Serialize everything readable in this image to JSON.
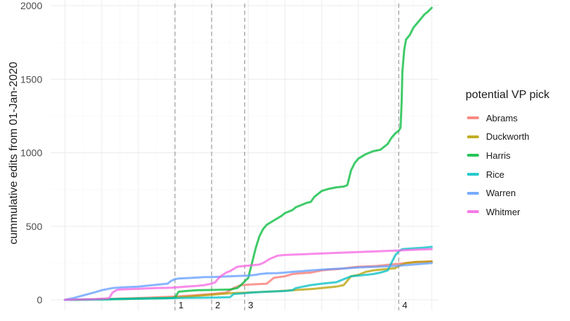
{
  "chart_data": {
    "type": "line",
    "ylabel": "cummulative edits from 01-Jan-2020",
    "xlabel": "",
    "ylim": [
      0,
      2000
    ],
    "yticks": [
      "0",
      "500",
      "1000",
      "1500",
      "2000"
    ],
    "xlim": [
      0,
      100
    ],
    "legend_title": "potential VP pick",
    "legend_position": "right",
    "grid": true,
    "events": [
      {
        "label": "1",
        "x": 30
      },
      {
        "label": "2",
        "x": 40
      },
      {
        "label": "3",
        "x": 49
      },
      {
        "label": "4",
        "x": 91
      }
    ],
    "series": [
      {
        "name": "Abrams",
        "color": "#F8766D",
        "points": [
          [
            0,
            0
          ],
          [
            10,
            5
          ],
          [
            20,
            12
          ],
          [
            30,
            22
          ],
          [
            35,
            30
          ],
          [
            40,
            40
          ],
          [
            44,
            50
          ],
          [
            46,
            80
          ],
          [
            48,
            100
          ],
          [
            51,
            105
          ],
          [
            55,
            110
          ],
          [
            57,
            150
          ],
          [
            60,
            160
          ],
          [
            62,
            175
          ],
          [
            64,
            180
          ],
          [
            67,
            185
          ],
          [
            70,
            200
          ],
          [
            72,
            205
          ],
          [
            75,
            210
          ],
          [
            78,
            220
          ],
          [
            80,
            225
          ],
          [
            85,
            230
          ],
          [
            88,
            238
          ],
          [
            91,
            245
          ],
          [
            95,
            255
          ],
          [
            100,
            262
          ]
        ]
      },
      {
        "name": "Duckworth",
        "color": "#B79F00",
        "points": [
          [
            0,
            0
          ],
          [
            15,
            5
          ],
          [
            30,
            15
          ],
          [
            35,
            25
          ],
          [
            40,
            35
          ],
          [
            45,
            45
          ],
          [
            50,
            50
          ],
          [
            55,
            55
          ],
          [
            60,
            62
          ],
          [
            62,
            65
          ],
          [
            65,
            70
          ],
          [
            68,
            75
          ],
          [
            70,
            80
          ],
          [
            72,
            85
          ],
          [
            74,
            90
          ],
          [
            75,
            95
          ],
          [
            76,
            100
          ],
          [
            77,
            130
          ],
          [
            78,
            160
          ],
          [
            80,
            170
          ],
          [
            82,
            190
          ],
          [
            84,
            200
          ],
          [
            86,
            205
          ],
          [
            88,
            210
          ],
          [
            90,
            215
          ],
          [
            91,
            230
          ],
          [
            93,
            250
          ],
          [
            96,
            258
          ],
          [
            100,
            260
          ]
        ]
      },
      {
        "name": "Harris",
        "color": "#00BA38",
        "points": [
          [
            0,
            0
          ],
          [
            10,
            3
          ],
          [
            20,
            8
          ],
          [
            29,
            12
          ],
          [
            30,
            15
          ],
          [
            31,
            55
          ],
          [
            33,
            60
          ],
          [
            36,
            65
          ],
          [
            40,
            67
          ],
          [
            45,
            70
          ],
          [
            47,
            80
          ],
          [
            48,
            100
          ],
          [
            50,
            150
          ],
          [
            51,
            250
          ],
          [
            52,
            350
          ],
          [
            53,
            430
          ],
          [
            54,
            480
          ],
          [
            55,
            510
          ],
          [
            57,
            540
          ],
          [
            59,
            570
          ],
          [
            60,
            590
          ],
          [
            62,
            610
          ],
          [
            63,
            630
          ],
          [
            65,
            650
          ],
          [
            66,
            660
          ],
          [
            67,
            665
          ],
          [
            68,
            700
          ],
          [
            69,
            720
          ],
          [
            70,
            740
          ],
          [
            72,
            755
          ],
          [
            74,
            765
          ],
          [
            76,
            770
          ],
          [
            77,
            780
          ],
          [
            78,
            880
          ],
          [
            79,
            930
          ],
          [
            80,
            960
          ],
          [
            82,
            990
          ],
          [
            84,
            1010
          ],
          [
            86,
            1020
          ],
          [
            87,
            1040
          ],
          [
            88,
            1060
          ],
          [
            89,
            1100
          ],
          [
            90,
            1130
          ],
          [
            91,
            1150
          ],
          [
            91.5,
            1170
          ],
          [
            91.8,
            1350
          ],
          [
            92,
            1550
          ],
          [
            92.5,
            1700
          ],
          [
            93,
            1770
          ],
          [
            94,
            1800
          ],
          [
            95,
            1850
          ],
          [
            96,
            1880
          ],
          [
            97,
            1910
          ],
          [
            98,
            1940
          ],
          [
            99,
            1960
          ],
          [
            100,
            1985
          ]
        ]
      },
      {
        "name": "Rice",
        "color": "#00BFC4",
        "points": [
          [
            0,
            0
          ],
          [
            10,
            3
          ],
          [
            20,
            8
          ],
          [
            30,
            12
          ],
          [
            40,
            15
          ],
          [
            45,
            18
          ],
          [
            46,
            40
          ],
          [
            49,
            45
          ],
          [
            51,
            50
          ],
          [
            55,
            55
          ],
          [
            60,
            60
          ],
          [
            62,
            65
          ],
          [
            63,
            80
          ],
          [
            65,
            90
          ],
          [
            67,
            100
          ],
          [
            70,
            110
          ],
          [
            74,
            120
          ],
          [
            76,
            140
          ],
          [
            78,
            160
          ],
          [
            80,
            165
          ],
          [
            82,
            170
          ],
          [
            84,
            175
          ],
          [
            86,
            185
          ],
          [
            88,
            200
          ],
          [
            89,
            250
          ],
          [
            90,
            300
          ],
          [
            91,
            330
          ],
          [
            92,
            345
          ],
          [
            95,
            350
          ],
          [
            98,
            355
          ],
          [
            100,
            360
          ]
        ]
      },
      {
        "name": "Warren",
        "color": "#619CFF",
        "points": [
          [
            0,
            0
          ],
          [
            2,
            10
          ],
          [
            5,
            30
          ],
          [
            8,
            50
          ],
          [
            10,
            65
          ],
          [
            13,
            80
          ],
          [
            16,
            85
          ],
          [
            20,
            90
          ],
          [
            24,
            100
          ],
          [
            28,
            110
          ],
          [
            29,
            130
          ],
          [
            30,
            140
          ],
          [
            31,
            145
          ],
          [
            35,
            150
          ],
          [
            38,
            155
          ],
          [
            40,
            155
          ],
          [
            45,
            160
          ],
          [
            50,
            165
          ],
          [
            52,
            170
          ],
          [
            53,
            175
          ],
          [
            55,
            180
          ],
          [
            58,
            182
          ],
          [
            60,
            185
          ],
          [
            62,
            190
          ],
          [
            65,
            195
          ],
          [
            67,
            200
          ],
          [
            70,
            205
          ],
          [
            73,
            210
          ],
          [
            77,
            215
          ],
          [
            80,
            220
          ],
          [
            85,
            225
          ],
          [
            90,
            230
          ],
          [
            95,
            240
          ],
          [
            100,
            250
          ]
        ]
      },
      {
        "name": "Whitmer",
        "color": "#F564E3",
        "points": [
          [
            0,
            0
          ],
          [
            8,
            5
          ],
          [
            12,
            10
          ],
          [
            13,
            50
          ],
          [
            14,
            65
          ],
          [
            15,
            70
          ],
          [
            20,
            75
          ],
          [
            25,
            80
          ],
          [
            29,
            82
          ],
          [
            33,
            90
          ],
          [
            36,
            95
          ],
          [
            38,
            100
          ],
          [
            40,
            110
          ],
          [
            41,
            120
          ],
          [
            42,
            150
          ],
          [
            43,
            170
          ],
          [
            44,
            185
          ],
          [
            45,
            195
          ],
          [
            46,
            210
          ],
          [
            47,
            225
          ],
          [
            49,
            230
          ],
          [
            51,
            235
          ],
          [
            53,
            240
          ],
          [
            54,
            250
          ],
          [
            56,
            280
          ],
          [
            58,
            300
          ],
          [
            60,
            305
          ],
          [
            65,
            310
          ],
          [
            70,
            315
          ],
          [
            75,
            320
          ],
          [
            80,
            325
          ],
          [
            85,
            330
          ],
          [
            90,
            335
          ],
          [
            95,
            340
          ],
          [
            100,
            345
          ]
        ]
      }
    ]
  }
}
